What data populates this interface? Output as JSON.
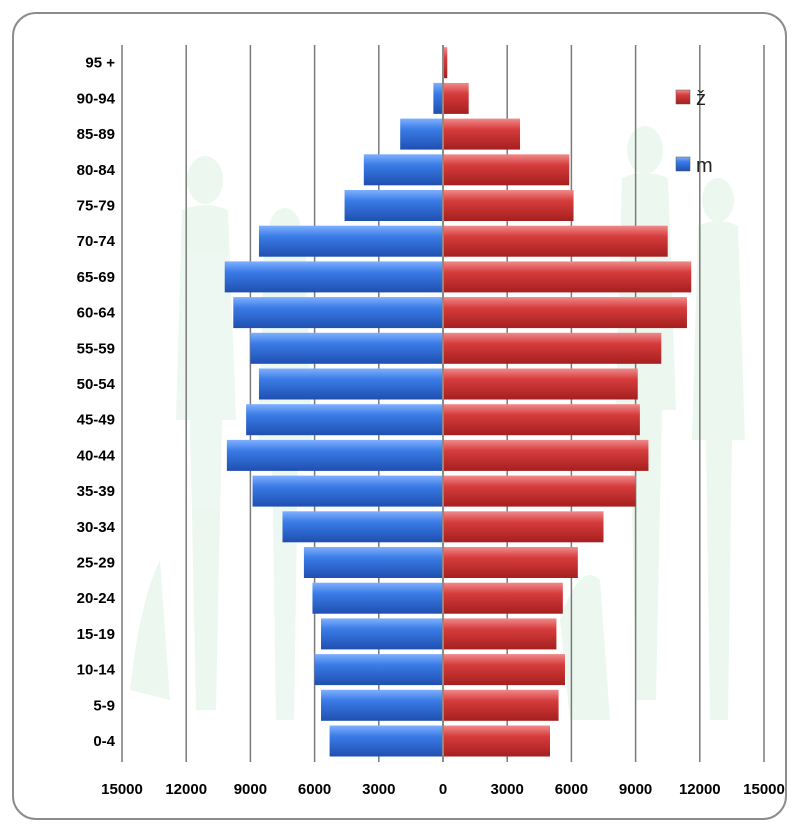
{
  "chart_data": {
    "type": "bar",
    "orientation": "horizontal-population-pyramid",
    "categories": [
      "0-4",
      "5-9",
      "10-14",
      "15-19",
      "20-24",
      "25-29",
      "30-34",
      "35-39",
      "40-44",
      "45-49",
      "50-54",
      "55-59",
      "60-64",
      "65-69",
      "70-74",
      "75-79",
      "80-84",
      "85-89",
      "90-94",
      "95 +"
    ],
    "series": [
      {
        "name": "m",
        "color": "#2f6bd6",
        "side": "left",
        "values": [
          5300,
          5700,
          6000,
          5700,
          6100,
          6500,
          7500,
          8900,
          10100,
          9200,
          8600,
          9000,
          9800,
          10200,
          8600,
          4600,
          3700,
          2000,
          450,
          0
        ]
      },
      {
        "name": "ž",
        "color": "#d13a3a",
        "side": "right",
        "values": [
          5000,
          5400,
          5700,
          5300,
          5600,
          6300,
          7500,
          9000,
          9600,
          9200,
          9100,
          10200,
          11400,
          11600,
          10500,
          6100,
          5900,
          3600,
          1200,
          200
        ]
      }
    ],
    "xlim": [
      -15000,
      15000
    ],
    "xticks": [
      "15000",
      "12000",
      "9000",
      "6000",
      "3000",
      "0",
      "3000",
      "6000",
      "9000",
      "12000",
      "15000"
    ],
    "grid": "vertical",
    "legend": "top-right",
    "title": "",
    "xlabel": "",
    "ylabel": ""
  }
}
